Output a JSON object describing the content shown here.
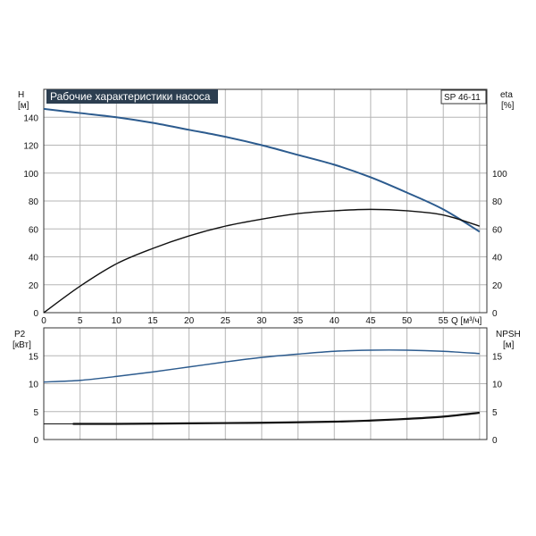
{
  "title": "Рабочие характеристики насоса",
  "model_label": "SP 46-11",
  "colors": {
    "blue": "#2c5b8e",
    "black": "#111111",
    "title_bg": "#2c3e50"
  },
  "chart_data": [
    {
      "type": "line",
      "title": "Рабочие характеристики насоса",
      "xlabel": "Q [м³/ч]",
      "ylabel_left": "H\n[м]",
      "ylabel_right": "eta\n[%]",
      "xlim": [
        0,
        61
      ],
      "ylim_left": [
        0,
        160
      ],
      "ylim_right": [
        0,
        160
      ],
      "x_ticks": [
        "0",
        "5",
        "10",
        "15",
        "20",
        "25",
        "30",
        "35",
        "40",
        "45",
        "50",
        "55"
      ],
      "y_ticks_left": [
        "0",
        "20",
        "40",
        "60",
        "80",
        "100",
        "120",
        "140"
      ],
      "y_ticks_right": [
        "0",
        "20",
        "40",
        "60",
        "80",
        "100"
      ],
      "grid": true,
      "series": [
        {
          "axis": "left",
          "color": "#2c5b8e",
          "x": [
            0,
            5,
            10,
            15,
            20,
            25,
            30,
            35,
            40,
            45,
            50,
            55,
            60
          ],
          "y": [
            146,
            143,
            140,
            136,
            131,
            126,
            120,
            113,
            106,
            97,
            86,
            74,
            58
          ]
        },
        {
          "axis": "right",
          "color": "#111111",
          "x": [
            0,
            5,
            10,
            15,
            20,
            25,
            30,
            35,
            40,
            45,
            50,
            55,
            60
          ],
          "y": [
            0,
            19,
            35,
            46,
            55,
            62,
            67,
            71,
            73,
            74,
            73,
            70,
            62
          ]
        }
      ]
    },
    {
      "type": "line",
      "ylabel_left": "P2\n[кВт]",
      "ylabel_right": "NPSH\n[м]",
      "xlim": [
        0,
        61
      ],
      "ylim_left": [
        0,
        20
      ],
      "ylim_right": [
        0,
        20
      ],
      "y_ticks_left": [
        "0",
        "5",
        "10",
        "15"
      ],
      "y_ticks_right": [
        "0",
        "5",
        "10",
        "15"
      ],
      "grid": true,
      "series": [
        {
          "axis": "left",
          "color": "#2c5b8e",
          "x": [
            0,
            5,
            10,
            15,
            20,
            25,
            30,
            35,
            40,
            45,
            50,
            55,
            60
          ],
          "y": [
            10.3,
            10.6,
            11.3,
            12.1,
            13.0,
            13.9,
            14.7,
            15.3,
            15.8,
            16.0,
            16.0,
            15.8,
            15.4
          ]
        },
        {
          "axis": "right",
          "color": "#111111",
          "x": [
            4,
            10,
            20,
            30,
            40,
            45,
            50,
            55,
            60
          ],
          "y": [
            2.8,
            2.8,
            2.9,
            3.0,
            3.2,
            3.4,
            3.7,
            4.1,
            4.8
          ]
        }
      ]
    }
  ]
}
